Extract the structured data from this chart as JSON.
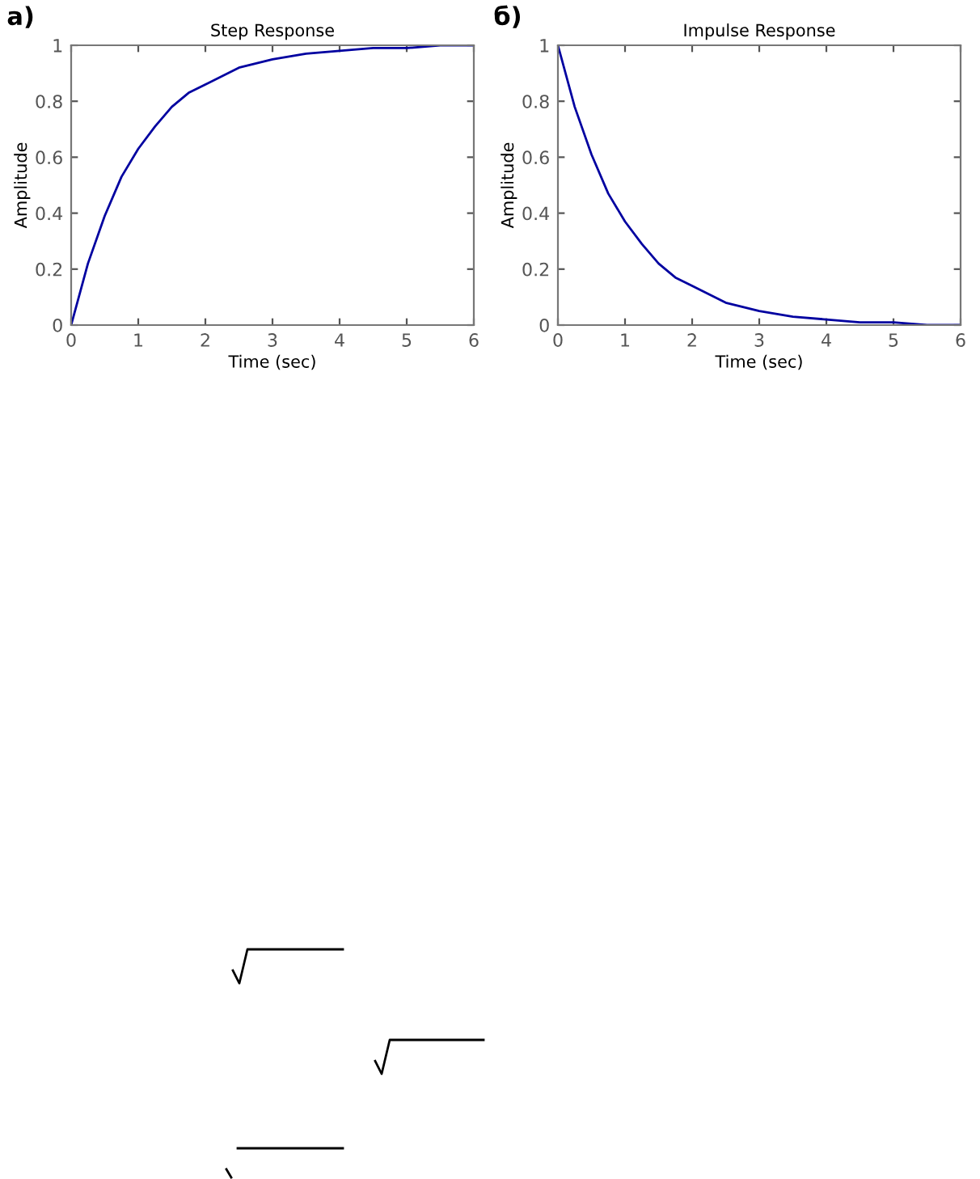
{
  "chart_data": [
    {
      "type": "line",
      "title": "Step Response",
      "xlabel": "Time (sec)",
      "ylabel": "Amplitude",
      "annotations": [
        "а)"
      ],
      "x": [
        0,
        0.25,
        0.5,
        0.75,
        1,
        1.25,
        1.5,
        1.75,
        2,
        2.5,
        3,
        3.5,
        4,
        4.5,
        5,
        5.5,
        6
      ],
      "series": [
        {
          "color": "#0000a0",
          "values": [
            0,
            0.22,
            0.39,
            0.53,
            0.63,
            0.71,
            0.78,
            0.83,
            0.86,
            0.92,
            0.95,
            0.97,
            0.98,
            0.99,
            0.99,
            1,
            1
          ]
        }
      ],
      "xlim": [
        0,
        6
      ],
      "ylim": [
        0,
        1
      ],
      "xticks": [
        0,
        1,
        2,
        3,
        4,
        5,
        6
      ],
      "yticks": [
        0,
        0.2,
        0.4,
        0.6,
        0.8,
        1
      ],
      "grid": false,
      "legend": false,
      "marker": "none",
      "line_style": "solid"
    },
    {
      "type": "line",
      "title": "Impulse Response",
      "xlabel": "Time (sec)",
      "ylabel": "Amplitude",
      "annotations": [
        "б)"
      ],
      "x": [
        0,
        0.25,
        0.5,
        0.75,
        1,
        1.25,
        1.5,
        1.75,
        2,
        2.5,
        3,
        3.5,
        4,
        4.5,
        5,
        5.5,
        6
      ],
      "series": [
        {
          "color": "#0000a0",
          "values": [
            1,
            0.78,
            0.61,
            0.47,
            0.37,
            0.29,
            0.22,
            0.17,
            0.14,
            0.08,
            0.05,
            0.03,
            0.02,
            0.01,
            0.01,
            0,
            0
          ]
        }
      ],
      "xlim": [
        0,
        6
      ],
      "ylim": [
        0,
        1
      ],
      "xticks": [
        0,
        1,
        2,
        3,
        4,
        5,
        6
      ],
      "yticks": [
        0,
        0.2,
        0.4,
        0.6,
        0.8,
        1
      ],
      "grid": false,
      "legend": false,
      "marker": "none",
      "line_style": "solid"
    }
  ]
}
